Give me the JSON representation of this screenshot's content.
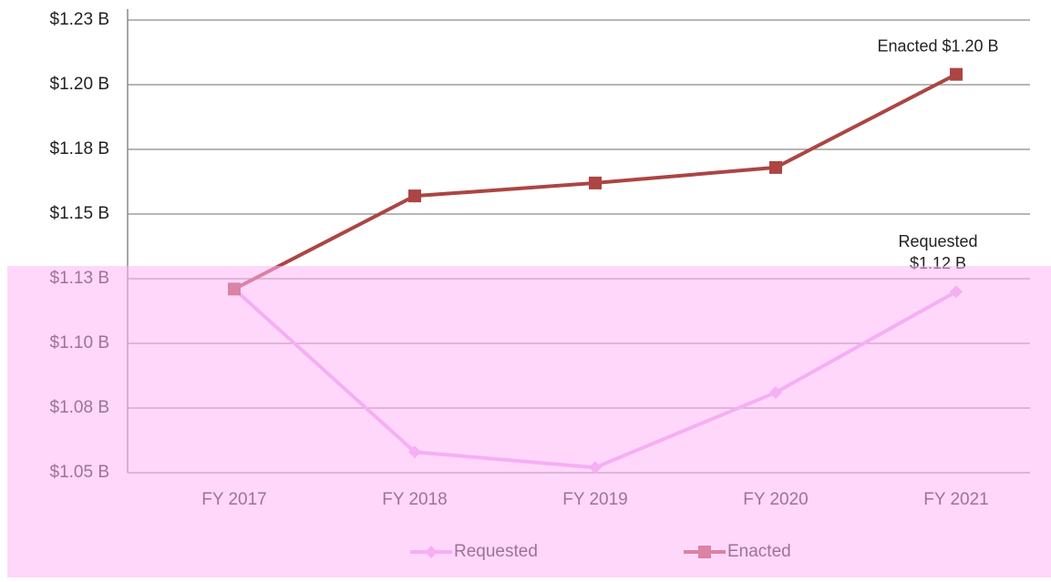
{
  "chart_data": {
    "type": "line",
    "categories": [
      "FY 2017",
      "FY 2018",
      "FY 2019",
      "FY 2020",
      "FY 2021"
    ],
    "series": [
      {
        "name": "Requested",
        "color": "#e9a6ef",
        "marker": "diamond",
        "values": [
          1.121,
          1.058,
          1.052,
          1.081,
          1.12
        ]
      },
      {
        "name": "Enacted",
        "color": "#ac4543",
        "marker": "square",
        "values": [
          1.121,
          1.157,
          1.162,
          1.168,
          1.204
        ]
      }
    ],
    "ylim": [
      1.05,
      1.23
    ],
    "yticks": [
      {
        "value": 1.05,
        "label": "$1.05 B"
      },
      {
        "value": 1.075,
        "label": "$1.08 B"
      },
      {
        "value": 1.1,
        "label": "$1.10 B"
      },
      {
        "value": 1.125,
        "label": "$1.13 B"
      },
      {
        "value": 1.15,
        "label": "$1.15 B"
      },
      {
        "value": 1.175,
        "label": "$1.18 B"
      },
      {
        "value": 1.2,
        "label": "$1.20 B"
      },
      {
        "value": 1.225,
        "label": "$1.23 B"
      }
    ],
    "grid": true,
    "legend": "bottom",
    "annotations": [
      {
        "series": 1,
        "point": 4,
        "lines": [
          "Enacted $1.20 B"
        ]
      },
      {
        "series": 0,
        "point": 4,
        "lines": [
          "Requested",
          "$1.12 B"
        ]
      }
    ]
  }
}
